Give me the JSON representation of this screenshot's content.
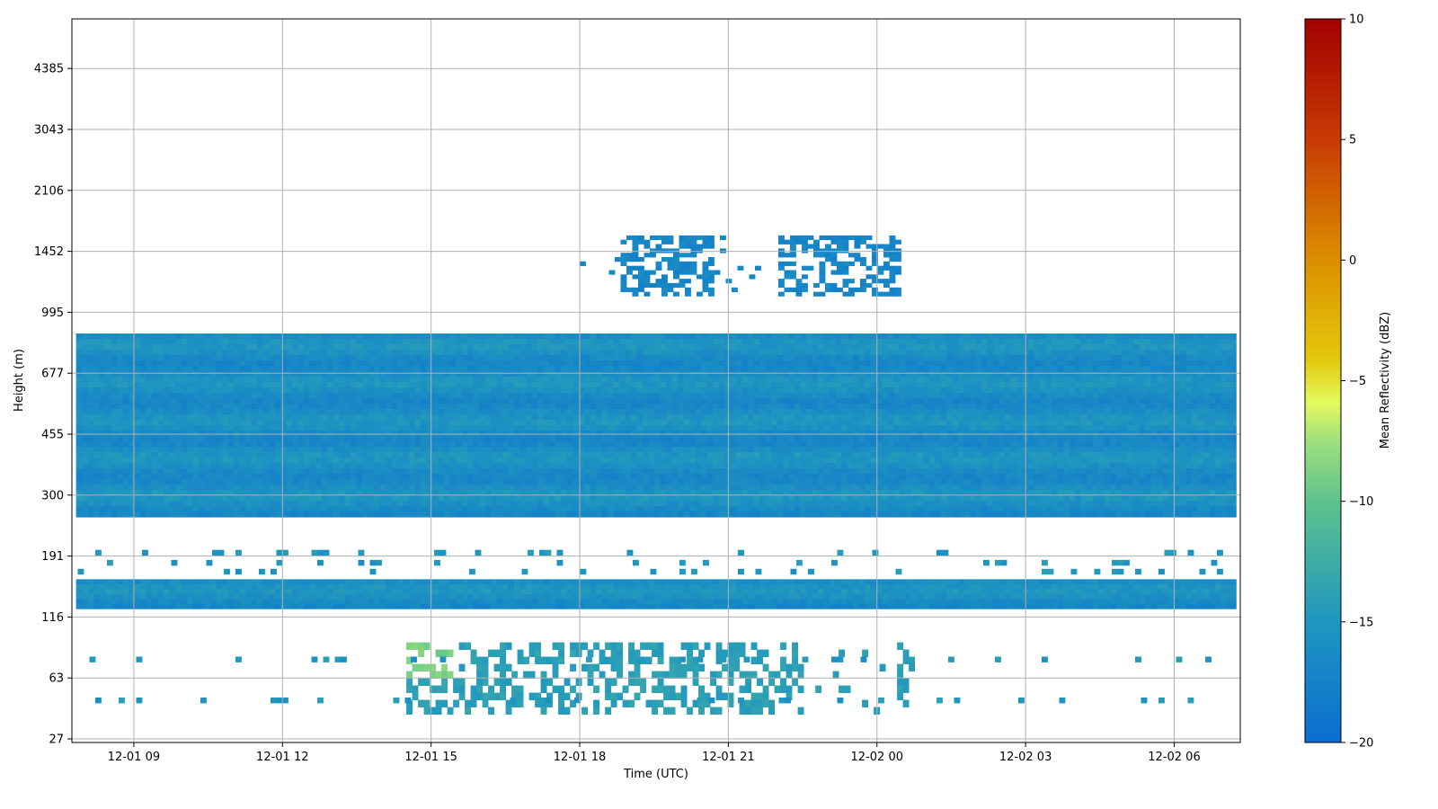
{
  "chart_data": {
    "type": "heatmap",
    "title": "",
    "xlabel": "Time (UTC)",
    "ylabel": "Height (m)",
    "x_ticks": [
      "12-01 09",
      "12-01 12",
      "12-01 15",
      "12-01 18",
      "12-01 21",
      "12-02 00",
      "12-02 03",
      "12-02 06"
    ],
    "x_range": [
      "12-01 07:45",
      "12-02 07:20"
    ],
    "y_ticks": [
      27,
      63,
      116,
      191,
      300,
      455,
      677,
      995,
      1452,
      2106,
      3043,
      4385
    ],
    "y_scale": "nonlinear (radar range gates)",
    "grid": true,
    "colorbar": {
      "label": "Mean Reflectivity (dBZ)",
      "range": [
        -20,
        10
      ],
      "ticks": [
        -20,
        -15,
        -10,
        -5,
        0,
        5,
        10
      ],
      "colormap": "blue-teal-green-yellow-orange-red"
    },
    "layers": [
      {
        "name": "upper cloud layer",
        "height_range_m": [
          255,
          870
        ],
        "time_range": [
          "12-01 07:50",
          "12-02 07:15"
        ],
        "dbz_range": [
          -17,
          -14
        ]
      },
      {
        "name": "middle cloud layer",
        "height_range_m": [
          124,
          158
        ],
        "time_range": [
          "12-01 07:50",
          "12-02 07:15"
        ],
        "dbz_range": [
          -17,
          -14
        ]
      },
      {
        "name": "elevated echoes",
        "height_range_m": [
          1100,
          1600
        ],
        "time_range": [
          "12-01 18:00",
          "12-02 00:45"
        ],
        "dbz_range": [
          -18,
          -16
        ]
      },
      {
        "name": "low-level echoes",
        "height_range_m": [
          38,
          90
        ],
        "time_range": [
          "12-01 14:30",
          "12-02 00:45"
        ],
        "dbz_range": [
          -17,
          -8
        ]
      }
    ]
  }
}
